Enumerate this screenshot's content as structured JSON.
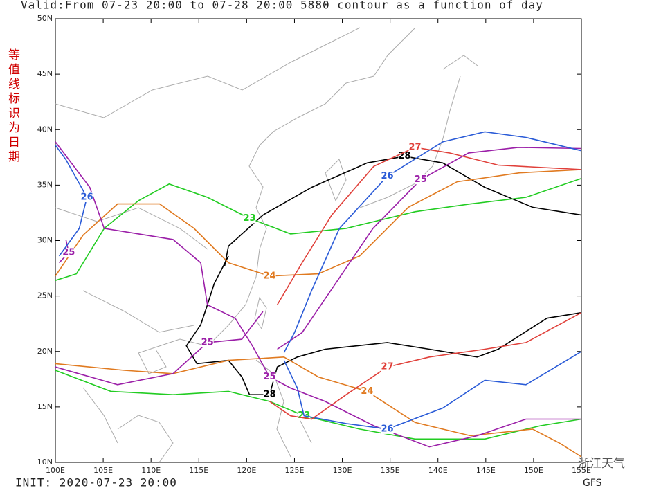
{
  "map": {
    "title": "Valid:From 07-23 20:00 to 07-28 20:00     5880 contour as a function of day",
    "side_note": "等值线标识为日期",
    "init": "INIT: 2020-07-23 20:00",
    "model": "GFS",
    "watermark": "浙江天气",
    "xlim": [
      100,
      155
    ],
    "ylim": [
      10,
      50
    ],
    "xticks": [
      {
        "value": 100,
        "label": "100E"
      },
      {
        "value": 105,
        "label": "105E"
      },
      {
        "value": 110,
        "label": "110E"
      },
      {
        "value": 115,
        "label": "115E"
      },
      {
        "value": 120,
        "label": "120E"
      },
      {
        "value": 125,
        "label": "125E"
      },
      {
        "value": 130,
        "label": "130E"
      },
      {
        "value": 135,
        "label": "135E"
      },
      {
        "value": 140,
        "label": "140E"
      },
      {
        "value": 145,
        "label": "145E"
      },
      {
        "value": 150,
        "label": "150E"
      },
      {
        "value": 155,
        "label": "155E"
      }
    ],
    "yticks": [
      {
        "value": 10,
        "label": "10N"
      },
      {
        "value": 15,
        "label": "15N"
      },
      {
        "value": 20,
        "label": "20N"
      },
      {
        "value": 25,
        "label": "25N"
      },
      {
        "value": 30,
        "label": "30N"
      },
      {
        "value": 35,
        "label": "35N"
      },
      {
        "value": 40,
        "label": "40N"
      },
      {
        "value": 45,
        "label": "45N"
      },
      {
        "value": 50,
        "label": "50N"
      }
    ],
    "contours": [
      {
        "label": "28",
        "color": "#000000",
        "lon": [
          117.7,
          118.1,
          121.7,
          126.8,
          132.6,
          136.5,
          140.5,
          144.9,
          149.9,
          155
        ],
        "lat": [
          27.7,
          29.5,
          32.3,
          34.8,
          37.0,
          37.6,
          37.0,
          34.8,
          33.0,
          32.3
        ]
      },
      {
        "label": "28",
        "color": "#000000",
        "lon": [
          118.1,
          116.6,
          115.9,
          115.2,
          113.7,
          114.8,
          118.1,
          119.5,
          120.3,
          122.4,
          123.2,
          125.3,
          128.2,
          134.7,
          139.1,
          144.1,
          146.3,
          151.4,
          155
        ],
        "lat": [
          28.6,
          26.1,
          24.2,
          22.4,
          20.5,
          18.9,
          19.2,
          17.7,
          16.1,
          16.1,
          18.6,
          19.5,
          20.2,
          20.8,
          20.2,
          19.5,
          20.2,
          23.0,
          23.5
        ]
      },
      {
        "label": "23",
        "color": "#22cc22",
        "lon": [
          100,
          102.2,
          105.1,
          108.7,
          111.9,
          115.9,
          120.3,
          124.6,
          130.4,
          137.6,
          143.4,
          149.2,
          155
        ],
        "lat": [
          26.4,
          27,
          31.1,
          33.6,
          35.1,
          33.9,
          32,
          30.6,
          31.1,
          32.6,
          33.3,
          33.9,
          35.6
        ]
      },
      {
        "label": "23",
        "color": "#22cc22",
        "lon": [
          100,
          105.8,
          112.3,
          118.1,
          122.4,
          126,
          131.8,
          137.6,
          144.9,
          150.7,
          155
        ],
        "lat": [
          18.3,
          16.4,
          16.1,
          16.4,
          15.5,
          14.2,
          13,
          12.1,
          12.1,
          13.3,
          13.9
        ]
      },
      {
        "label": "24",
        "color": "#e07a20",
        "lon": [
          100,
          102.9,
          106.5,
          110.9,
          114.5,
          118.1,
          122.4,
          127.5,
          131.8,
          136.9,
          142,
          148.5,
          155
        ],
        "lat": [
          26.8,
          30.5,
          33.3,
          33.3,
          31.1,
          28,
          26.8,
          27,
          28.6,
          33,
          35.3,
          36.1,
          36.4
        ]
      },
      {
        "label": "24",
        "color": "#e07a20",
        "lon": [
          100,
          107.2,
          112.3,
          118.1,
          123.9,
          127.5,
          132.6,
          137.6,
          143.4,
          149.9,
          152.8,
          155
        ],
        "lat": [
          18.9,
          18.3,
          18,
          19.2,
          19.5,
          17.7,
          16.4,
          13.6,
          12.4,
          13,
          11.7,
          10.5
        ]
      },
      {
        "label": "25",
        "color": "#9b1fa8",
        "lon": [
          100,
          103.6,
          105.1,
          112.3,
          115.2,
          115.9,
          118.8,
          120.6,
          122.4,
          124.6,
          128.2,
          133.3,
          139.1,
          144.1,
          149.2,
          155
        ],
        "lat": [
          38.9,
          34.8,
          31.1,
          30.1,
          28,
          24.2,
          23,
          20.5,
          17.7,
          16.7,
          15.5,
          13.3,
          11.4,
          12.4,
          13.9,
          13.9
        ]
      },
      {
        "label": "25",
        "color": "#9b1fa8",
        "lon": [
          100,
          106.5,
          112.3,
          115.9,
          119.5,
          121.7
        ],
        "lat": [
          18.6,
          17,
          18,
          20.8,
          21.1,
          23.6
        ]
      },
      {
        "label": "25",
        "color": "#9b1fa8",
        "lon": [
          123.2,
          125.8,
          128.8,
          133.2,
          138.2,
          143.2,
          148.4,
          155
        ],
        "lat": [
          20.2,
          21.7,
          25.5,
          31.1,
          35.5,
          37.9,
          38.4,
          38.3
        ]
      },
      {
        "label": "25",
        "color": "#9b1fa8",
        "lon": [
          101.1,
          101.4,
          100.4
        ],
        "lat": [
          30.1,
          28.9,
          28
        ]
      },
      {
        "label": "26",
        "color": "#2a5bd7",
        "lon": [
          100,
          101.1,
          103.3,
          102.5,
          100.4
        ],
        "lat": [
          38.6,
          37.3,
          33.9,
          31.1,
          28.6
        ]
      },
      {
        "label": "26",
        "color": "#2a5bd7",
        "lon": [
          123.9,
          125,
          126.8,
          129.7,
          134.7,
          140.5,
          144.9,
          149.2,
          155
        ],
        "lat": [
          19.9,
          21.7,
          25.5,
          31.1,
          35.8,
          38.9,
          39.8,
          39.3,
          38.1
        ]
      },
      {
        "label": "26",
        "color": "#2a5bd7",
        "lon": [
          123.9,
          125.3,
          126,
          130.4,
          134.7,
          140.5,
          144.9,
          149.2,
          155
        ],
        "lat": [
          19.2,
          16.7,
          14.2,
          13.5,
          13,
          14.9,
          17.4,
          17,
          20
        ]
      },
      {
        "label": "27",
        "color": "#e0403a",
        "lon": [
          123.2,
          125.8,
          128.9,
          133.3,
          137.6,
          141.2,
          146.3,
          155
        ],
        "lat": [
          24.2,
          28,
          32.3,
          36.7,
          38.4,
          37.9,
          36.8,
          36.4
        ]
      },
      {
        "label": "27",
        "color": "#e0403a",
        "lon": [
          122.4,
          124.6,
          126.8,
          130.4,
          134.7,
          139.1,
          144.9,
          149.2,
          155
        ],
        "lat": [
          15.5,
          14.2,
          13.9,
          16.1,
          18.6,
          19.5,
          20.2,
          20.8,
          23.5
        ]
      }
    ]
  }
}
